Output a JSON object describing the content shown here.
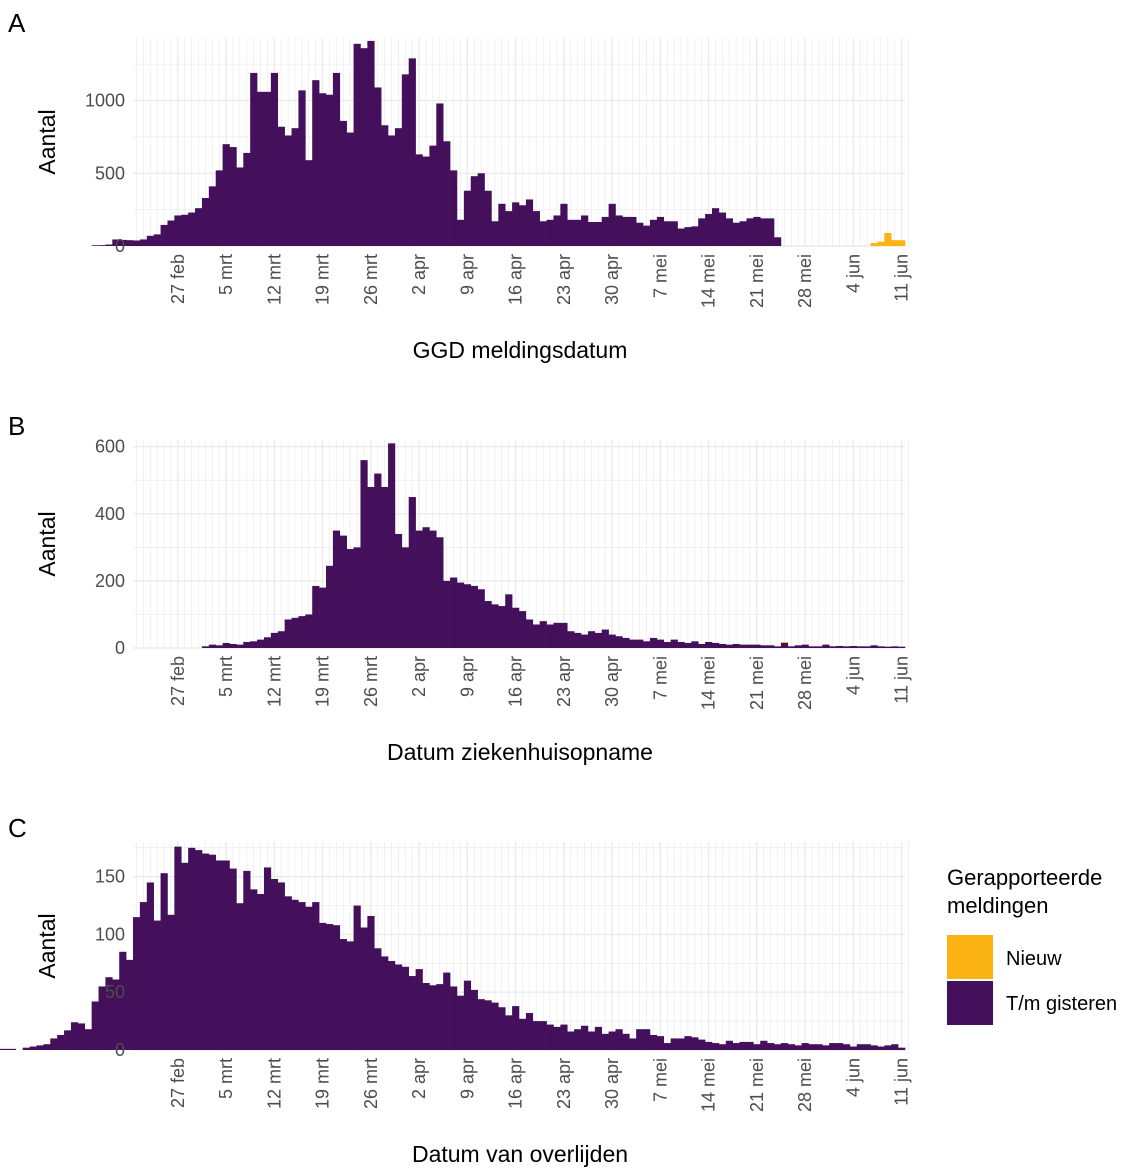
{
  "chart_data": [
    {
      "panel_label": "A",
      "type": "bar",
      "stacked": true,
      "xlabel": "GGD meldingsdatum",
      "ylabel": "Aantal",
      "ylim": [
        0,
        1430
      ],
      "yticks": [
        0,
        500,
        1000
      ],
      "xtick_labels": [
        "27 feb",
        "5 mrt",
        "12 mrt",
        "19 mrt",
        "26 mrt",
        "2 apr",
        "9 apr",
        "16 apr",
        "23 apr",
        "30 apr",
        "7 mei",
        "14 mei",
        "21 mei",
        "28 mei",
        "4 jun",
        "11 jun"
      ],
      "grid": true,
      "series": [
        {
          "name": "T/m gisteren",
          "color": "#440f5b",
          "values": [
            5,
            6,
            10,
            45,
            42,
            40,
            38,
            45,
            70,
            80,
            145,
            175,
            210,
            215,
            230,
            260,
            330,
            410,
            520,
            700,
            680,
            540,
            640,
            1190,
            1060,
            1060,
            1190,
            820,
            760,
            810,
            1070,
            590,
            1140,
            1050,
            1040,
            1190,
            860,
            780,
            1390,
            1360,
            1410,
            1090,
            830,
            760,
            810,
            1180,
            1290,
            630,
            615,
            690,
            980,
            720,
            520,
            180,
            380,
            480,
            500,
            380,
            170,
            290,
            240,
            300,
            280,
            320,
            240,
            170,
            180,
            210,
            290,
            180,
            180,
            210,
            165,
            165,
            200,
            290,
            210,
            200,
            200,
            160,
            140,
            180,
            200,
            170,
            170,
            120,
            130,
            135,
            190,
            220,
            260,
            230,
            190,
            160,
            170,
            190,
            200,
            190,
            190,
            60
          ]
        },
        {
          "name": "Nieuw",
          "color": "#fcb414",
          "values": [
            0,
            0,
            0,
            0,
            0,
            0,
            0,
            0,
            0,
            0,
            0,
            0,
            0,
            0,
            0,
            0,
            0,
            0,
            0,
            0,
            0,
            0,
            0,
            0,
            0,
            0,
            0,
            0,
            0,
            0,
            0,
            0,
            0,
            0,
            0,
            0,
            0,
            0,
            0,
            0,
            0,
            0,
            0,
            0,
            0,
            0,
            0,
            0,
            0,
            0,
            0,
            0,
            0,
            0,
            0,
            0,
            0,
            0,
            0,
            0,
            0,
            0,
            0,
            0,
            0,
            0,
            0,
            0,
            0,
            0,
            0,
            0,
            0,
            0,
            0,
            0,
            0,
            0,
            0,
            0,
            0,
            0,
            0,
            0,
            0,
            0,
            0,
            0,
            0,
            0,
            0,
            0,
            0,
            0,
            0,
            0,
            0,
            0,
            0,
            0,
            0,
            0,
            0,
            0,
            0,
            0,
            0,
            0,
            0,
            0,
            0,
            0,
            0,
            20,
            30,
            90,
            40,
            40
          ]
        }
      ]
    },
    {
      "panel_label": "B",
      "type": "bar",
      "stacked": true,
      "xlabel": "Datum ziekenhuisopname",
      "ylabel": "Aantal",
      "ylim": [
        0,
        620
      ],
      "yticks": [
        0,
        200,
        400,
        600
      ],
      "xtick_labels": [
        "27 feb",
        "5 mrt",
        "12 mrt",
        "19 mrt",
        "26 mrt",
        "2 apr",
        "9 apr",
        "16 apr",
        "23 apr",
        "30 apr",
        "7 mei",
        "14 mei",
        "21 mei",
        "28 mei",
        "4 jun",
        "11 jun"
      ],
      "grid": true,
      "series": [
        {
          "name": "T/m gisteren",
          "color": "#440f5b",
          "values": [
            5,
            10,
            8,
            15,
            12,
            10,
            18,
            20,
            25,
            32,
            45,
            50,
            85,
            90,
            95,
            100,
            185,
            180,
            245,
            350,
            335,
            295,
            300,
            560,
            480,
            520,
            480,
            610,
            340,
            300,
            450,
            350,
            360,
            350,
            330,
            200,
            210,
            195,
            190,
            185,
            175,
            140,
            130,
            125,
            160,
            120,
            110,
            85,
            70,
            80,
            70,
            75,
            75,
            50,
            45,
            40,
            50,
            45,
            55,
            40,
            35,
            30,
            25,
            25,
            20,
            30,
            25,
            18,
            25,
            18,
            15,
            20,
            12,
            18,
            15,
            12,
            10,
            12,
            10,
            10,
            10,
            8,
            8,
            5,
            15,
            5,
            8,
            10,
            5,
            5,
            10,
            5,
            6,
            5,
            6,
            5,
            5,
            8,
            5,
            4,
            5,
            4
          ]
        },
        {
          "name": "Nieuw",
          "color": "#fcb414",
          "values": [
            0,
            0,
            0,
            0,
            0,
            0,
            0,
            0,
            0,
            0,
            0,
            0,
            0,
            0,
            0,
            0,
            0,
            0,
            0,
            0,
            0,
            0,
            0,
            0,
            0,
            0,
            0,
            0,
            0,
            0,
            0,
            0,
            0,
            0,
            0,
            0,
            0,
            0,
            0,
            0,
            0,
            0,
            0,
            0,
            0,
            0,
            0,
            0,
            0,
            0,
            0,
            0,
            0,
            0,
            0,
            0,
            0,
            0,
            0,
            0,
            0,
            0,
            0,
            0,
            0,
            0,
            0,
            0,
            0,
            0,
            0,
            0,
            0,
            0,
            0,
            0,
            0,
            0,
            0,
            0,
            0,
            0,
            0,
            0,
            3,
            0,
            0,
            0,
            0,
            0,
            0,
            0,
            0,
            0,
            0,
            0,
            0,
            0,
            0,
            0,
            0,
            0
          ]
        }
      ]
    },
    {
      "panel_label": "C",
      "type": "bar",
      "stacked": true,
      "xlabel": "Datum van overlijden",
      "ylabel": "Aantal",
      "ylim": [
        0,
        180
      ],
      "yticks": [
        0,
        50,
        100,
        150
      ],
      "xtick_labels": [
        "27 feb",
        "5 mrt",
        "12 mrt",
        "19 mrt",
        "26 mrt",
        "2 apr",
        "9 apr",
        "16 apr",
        "23 apr",
        "30 apr",
        "7 mei",
        "14 mei",
        "21 mei",
        "28 mei",
        "4 jun",
        "11 jun"
      ],
      "grid": true,
      "series": [
        {
          "name": "T/m gisteren",
          "color": "#440f5b",
          "values": [
            0,
            0,
            0,
            0,
            0,
            0,
            0,
            0,
            0,
            0,
            1,
            1,
            1,
            0,
            2,
            3,
            4,
            5,
            10,
            13,
            17,
            24,
            23,
            18,
            42,
            55,
            63,
            61,
            85,
            78,
            115,
            128,
            145,
            112,
            153,
            117,
            176,
            162,
            175,
            173,
            170,
            169,
            164,
            164,
            157,
            127,
            155,
            139,
            135,
            158,
            148,
            145,
            133,
            130,
            128,
            124,
            128,
            110,
            109,
            108,
            96,
            94,
            125,
            106,
            116,
            88,
            81,
            77,
            74,
            72,
            64,
            70,
            58,
            56,
            57,
            67,
            55,
            47,
            60,
            52,
            44,
            43,
            41,
            37,
            30,
            38,
            27,
            32,
            25,
            25,
            22,
            20,
            22,
            16,
            18,
            21,
            16,
            20,
            14,
            16,
            18,
            14,
            10,
            18,
            18,
            13,
            12,
            6,
            10,
            10,
            12,
            11,
            9,
            7,
            6,
            5,
            8,
            6,
            7,
            7,
            5,
            8,
            6,
            5,
            6,
            5,
            4,
            6,
            5,
            5,
            4,
            6,
            6,
            5,
            3,
            5,
            5,
            4,
            3,
            4,
            5,
            2
          ]
        },
        {
          "name": "Nieuw",
          "color": "#fcb414",
          "values": []
        }
      ]
    }
  ],
  "legend": {
    "title": "Gerapporteerde meldingen",
    "items": [
      {
        "label": "Nieuw",
        "color": "#fcb414"
      },
      {
        "label": "T/m gisteren",
        "color": "#440f5b"
      }
    ]
  },
  "panel_labels": [
    "A",
    "B",
    "C"
  ]
}
